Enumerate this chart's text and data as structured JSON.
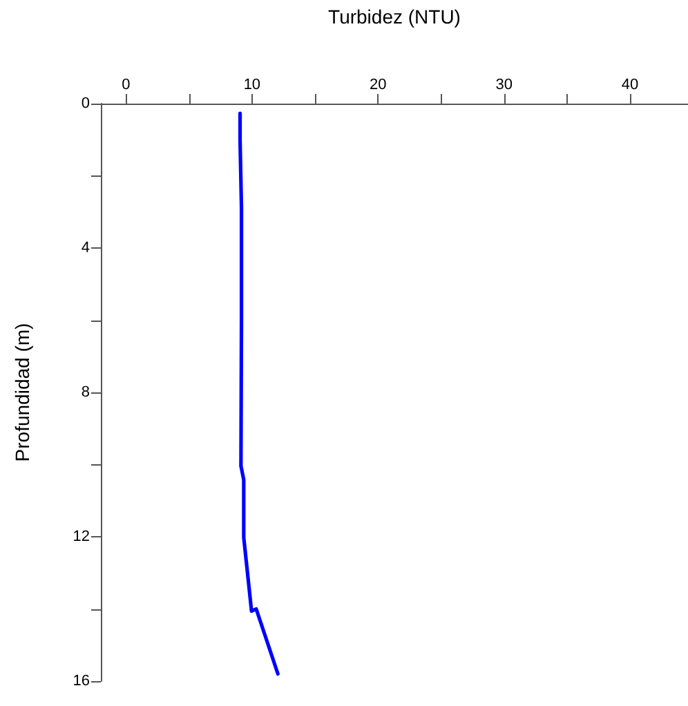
{
  "chart_data": {
    "type": "line",
    "xlabel": "Turbidez (NTU)",
    "ylabel": "Profundidad (m)",
    "xlim": [
      -2,
      44.6
    ],
    "xticks": [
      0,
      {
        "value": 5,
        "label": null
      },
      10,
      {
        "value": 15,
        "label": null
      },
      20,
      {
        "value": 25,
        "label": null
      },
      30,
      {
        "value": 35,
        "label": null
      },
      40
    ],
    "ylim": [
      16,
      0
    ],
    "yticks": [
      0,
      {
        "value": 2,
        "label": null
      },
      4,
      {
        "value": 6,
        "label": null
      },
      8,
      {
        "value": 10,
        "label": null
      },
      12,
      {
        "value": 14,
        "label": null
      },
      16
    ],
    "series": [
      {
        "color": "#0000ff",
        "x": [
          9.05,
          9.05,
          9.16,
          9.16,
          9.12,
          9.34,
          9.34,
          9.96,
          10.33,
          12.05
        ],
        "values": [
          0.27,
          1.03,
          2.88,
          6.0,
          10.04,
          10.42,
          12.02,
          14.06,
          14.0,
          15.8
        ]
      }
    ],
    "grid": false,
    "marker": "none",
    "line_style": "solid"
  }
}
